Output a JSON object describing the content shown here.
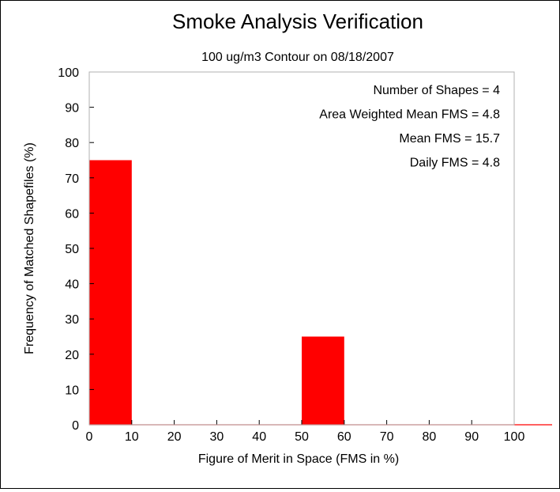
{
  "chart_data": {
    "type": "bar",
    "title": "Smoke Analysis Verification",
    "subtitle": "100 ug/m3 Contour on 08/18/2007",
    "xlabel": "Figure of Merit in Space (FMS in %)",
    "ylabel": "Frequency of Matched Shapefiles (%)",
    "xlim": [
      0,
      100
    ],
    "ylim": [
      0,
      100
    ],
    "xticks": [
      "0",
      "10",
      "20",
      "30",
      "40",
      "50",
      "60",
      "70",
      "80",
      "90",
      "100"
    ],
    "yticks": [
      "0",
      "10",
      "20",
      "30",
      "40",
      "50",
      "60",
      "70",
      "80",
      "90",
      "100"
    ],
    "bin_width": 10,
    "bins": [
      0,
      10,
      20,
      30,
      40,
      50,
      60,
      70,
      80,
      90,
      100
    ],
    "values": [
      75,
      0,
      0,
      0,
      0,
      25,
      0,
      0,
      0,
      0,
      0
    ],
    "bar_color": "#ff0000",
    "annotations": [
      "Number of Shapes = 4",
      "Area Weighted Mean FMS = 4.8",
      "Mean FMS = 15.7",
      "Daily FMS = 4.8"
    ],
    "grid": false,
    "legend": "none"
  }
}
